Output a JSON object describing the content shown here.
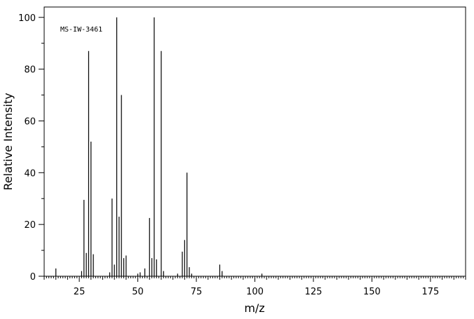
{
  "chart_data": {
    "type": "bar",
    "title": "",
    "annotation": "MS-IW-3461",
    "xlabel": "m/z",
    "ylabel": "Relative Intensity",
    "xlim": [
      10,
      190
    ],
    "ylim": [
      0,
      104
    ],
    "x_major_ticks": [
      25,
      50,
      75,
      100,
      125,
      150,
      175
    ],
    "y_major_ticks": [
      0,
      20,
      40,
      60,
      80,
      100
    ],
    "grid": false,
    "legend": "none",
    "color": "#000000",
    "peaks": [
      {
        "mz": 15,
        "intensity": 3.0
      },
      {
        "mz": 26,
        "intensity": 2.0
      },
      {
        "mz": 27,
        "intensity": 29.5
      },
      {
        "mz": 28,
        "intensity": 9.0
      },
      {
        "mz": 29,
        "intensity": 87.0
      },
      {
        "mz": 30,
        "intensity": 52.0
      },
      {
        "mz": 31,
        "intensity": 8.5
      },
      {
        "mz": 38,
        "intensity": 1.5
      },
      {
        "mz": 39,
        "intensity": 30.0
      },
      {
        "mz": 40,
        "intensity": 4.5
      },
      {
        "mz": 41,
        "intensity": 100.0
      },
      {
        "mz": 42,
        "intensity": 23.0
      },
      {
        "mz": 43,
        "intensity": 70.0
      },
      {
        "mz": 44,
        "intensity": 7.0
      },
      {
        "mz": 45,
        "intensity": 8.0
      },
      {
        "mz": 50,
        "intensity": 1.0
      },
      {
        "mz": 51,
        "intensity": 1.5
      },
      {
        "mz": 53,
        "intensity": 3.0
      },
      {
        "mz": 55,
        "intensity": 22.5
      },
      {
        "mz": 56,
        "intensity": 7.0
      },
      {
        "mz": 57,
        "intensity": 100.0
      },
      {
        "mz": 58,
        "intensity": 6.5
      },
      {
        "mz": 60,
        "intensity": 87.0
      },
      {
        "mz": 61,
        "intensity": 2.0
      },
      {
        "mz": 67,
        "intensity": 1.0
      },
      {
        "mz": 69,
        "intensity": 9.5
      },
      {
        "mz": 70,
        "intensity": 14.0
      },
      {
        "mz": 71,
        "intensity": 40.0
      },
      {
        "mz": 72,
        "intensity": 3.5
      },
      {
        "mz": 73,
        "intensity": 1.0
      },
      {
        "mz": 85,
        "intensity": 4.5
      },
      {
        "mz": 86,
        "intensity": 2.0
      },
      {
        "mz": 103,
        "intensity": 1.0
      }
    ]
  }
}
